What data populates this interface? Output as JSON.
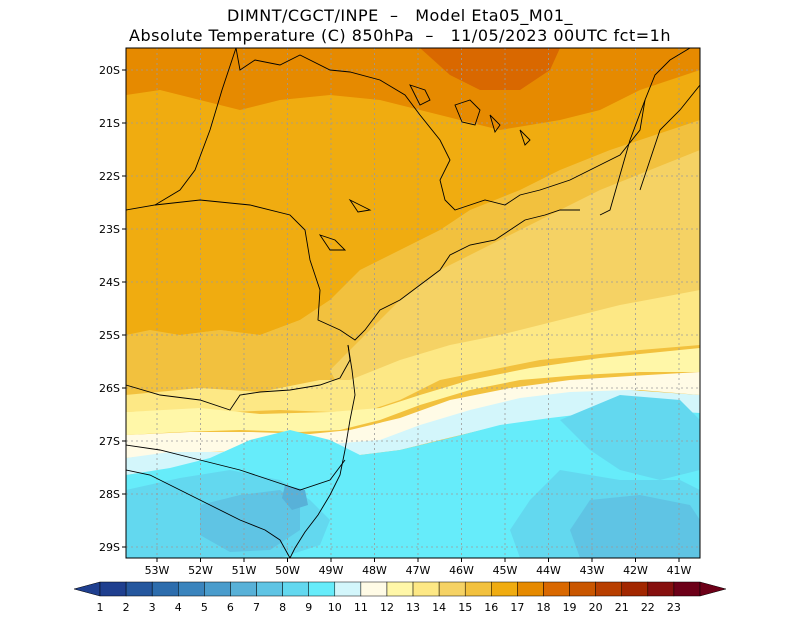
{
  "header": {
    "title_line1": "DIMNT/CGCT/INPE  –   Model Eta05_M01_",
    "title_line2": "Absolute Temperature (C) 850hPa  –   11/05/2023 00UTC fct=1h"
  },
  "map": {
    "lat_labels": [
      "20S",
      "21S",
      "22S",
      "23S",
      "24S",
      "25S",
      "26S",
      "27S",
      "28S",
      "29S"
    ],
    "lon_labels": [
      "53W",
      "52W",
      "51W",
      "50W",
      "49W",
      "48W",
      "47W",
      "46W",
      "45W",
      "44W",
      "43W",
      "42W",
      "41W"
    ],
    "gridlines": true
  },
  "colorbar": {
    "labels": [
      "1",
      "2",
      "3",
      "4",
      "5",
      "6",
      "7",
      "8",
      "9",
      "10",
      "11",
      "12",
      "13",
      "14",
      "15",
      "16",
      "17",
      "18",
      "19",
      "20",
      "21",
      "22",
      "23"
    ],
    "colors": [
      "#1f3f8f",
      "#25579e",
      "#2d6dad",
      "#3a84bd",
      "#4a9ccc",
      "#58b1d8",
      "#5fc4e4",
      "#63d8ef",
      "#66ecfa",
      "#d3f6fb",
      "#fffbe6",
      "#fff7a8",
      "#fde885",
      "#f5d264",
      "#f2c13e",
      "#f0ac10",
      "#e68a00",
      "#d96800",
      "#c95600",
      "#b83f00",
      "#a22700",
      "#86100e",
      "#6d0018"
    ]
  }
}
